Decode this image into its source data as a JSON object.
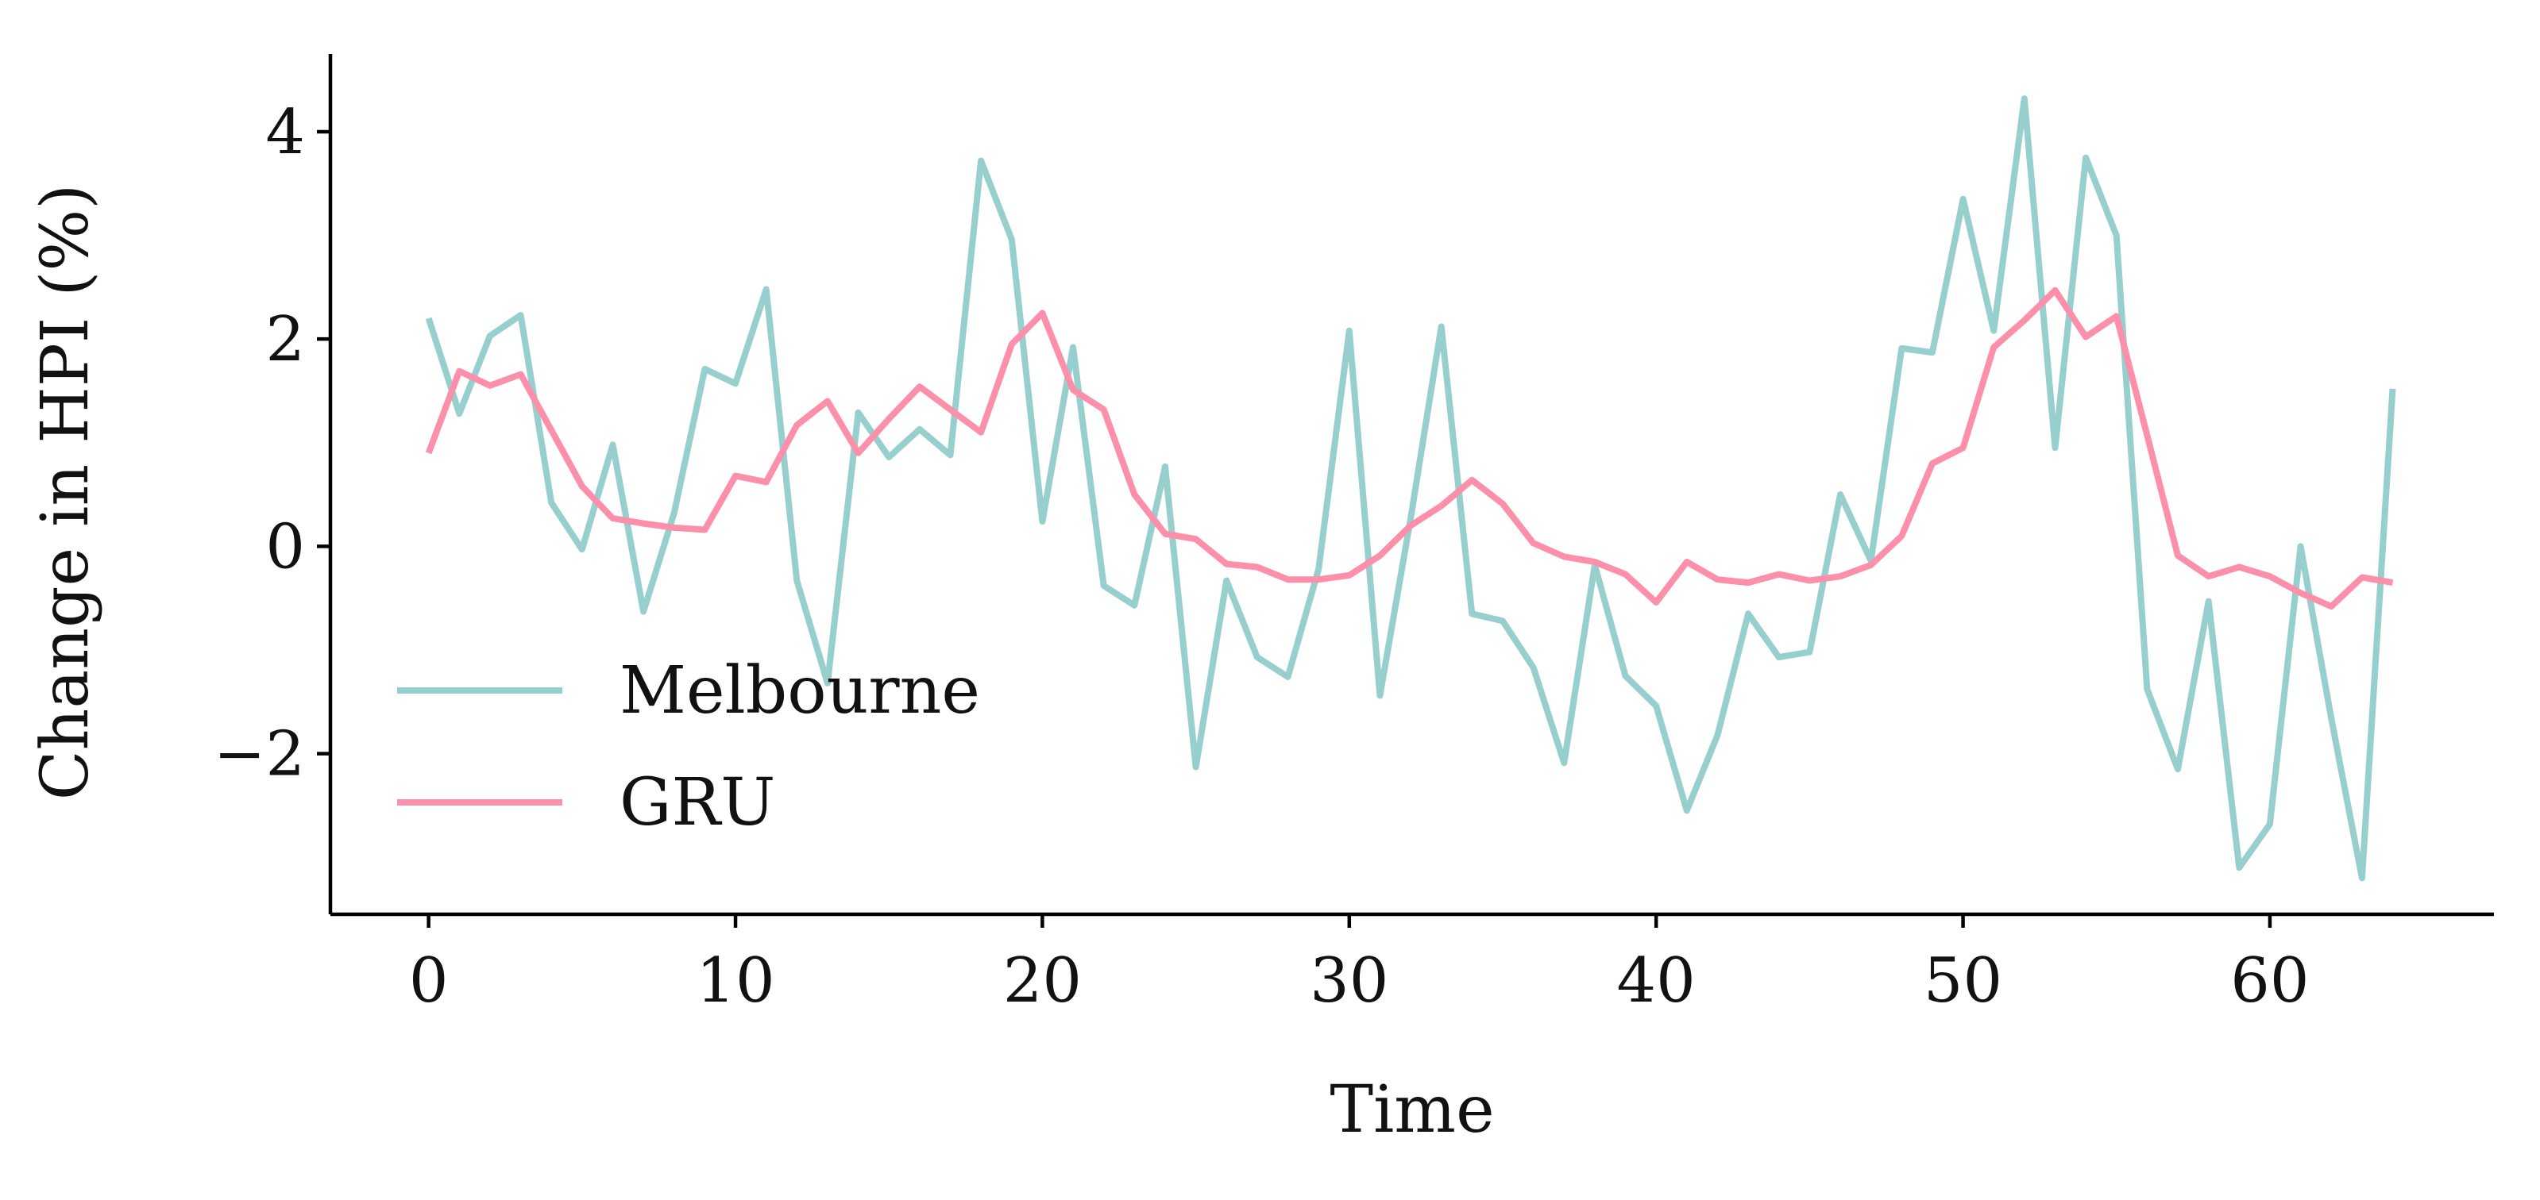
{
  "chart_data": {
    "type": "line",
    "title": "",
    "xlabel": "Time",
    "ylabel": "Change in HPI (%)",
    "xlim": [
      -3.2,
      67.3
    ],
    "ylim": [
      -3.55,
      4.75
    ],
    "x_ticks": [
      0,
      10,
      20,
      30,
      40,
      50,
      60
    ],
    "y_ticks": [
      4,
      2,
      0,
      -2
    ],
    "y_tick_labels": [
      "4",
      "2",
      "0",
      "−2"
    ],
    "grid": false,
    "legend_position": "lower-left",
    "x": [
      0,
      1,
      2,
      3,
      4,
      5,
      6,
      7,
      8,
      9,
      10,
      11,
      12,
      13,
      14,
      15,
      16,
      17,
      18,
      19,
      20,
      21,
      22,
      23,
      24,
      25,
      26,
      27,
      28,
      29,
      30,
      31,
      32,
      33,
      34,
      35,
      36,
      37,
      38,
      39,
      40,
      41,
      42,
      43,
      44,
      45,
      46,
      47,
      48,
      49,
      50,
      51,
      52,
      53,
      54,
      55,
      56,
      57,
      58,
      59,
      60,
      61,
      62,
      63,
      64
    ],
    "series": [
      {
        "name": "Melbourne",
        "color": "#96cfcd",
        "values": [
          2.2,
          1.28,
          2.03,
          2.23,
          0.42,
          -0.03,
          0.98,
          -0.63,
          0.32,
          1.71,
          1.57,
          2.48,
          -0.33,
          -1.32,
          1.29,
          0.86,
          1.13,
          0.88,
          3.72,
          2.96,
          0.24,
          1.92,
          -0.38,
          -0.57,
          0.77,
          -2.13,
          -0.33,
          -1.07,
          -1.26,
          -0.22,
          2.08,
          -1.44,
          0.27,
          2.12,
          -0.65,
          -0.72,
          -1.17,
          -2.09,
          -0.18,
          -1.25,
          -1.54,
          -2.55,
          -1.82,
          -0.65,
          -1.07,
          -1.02,
          0.5,
          -0.14,
          1.91,
          1.87,
          3.35,
          2.08,
          4.32,
          0.95,
          3.75,
          3.0,
          -1.38,
          -2.15,
          -0.53,
          -3.1,
          -2.68,
          0.0,
          -1.66,
          -3.2,
          1.52
        ]
      },
      {
        "name": "GRU",
        "color": "#fc8fa9",
        "values": [
          0.9,
          1.69,
          1.55,
          1.66,
          1.12,
          0.58,
          0.27,
          0.22,
          0.18,
          0.16,
          0.68,
          0.62,
          1.17,
          1.4,
          0.9,
          1.23,
          1.54,
          1.32,
          1.1,
          1.95,
          2.25,
          1.51,
          1.32,
          0.5,
          0.12,
          0.07,
          -0.17,
          -0.2,
          -0.32,
          -0.32,
          -0.28,
          -0.09,
          0.2,
          0.39,
          0.64,
          0.41,
          0.03,
          -0.1,
          -0.15,
          -0.27,
          -0.54,
          -0.15,
          -0.32,
          -0.35,
          -0.27,
          -0.33,
          -0.29,
          -0.18,
          0.1,
          0.8,
          0.95,
          1.92,
          2.18,
          2.47,
          2.02,
          2.22,
          1.07,
          -0.09,
          -0.29,
          -0.2,
          -0.29,
          -0.45,
          -0.58,
          -0.3,
          -0.35
        ]
      }
    ]
  }
}
